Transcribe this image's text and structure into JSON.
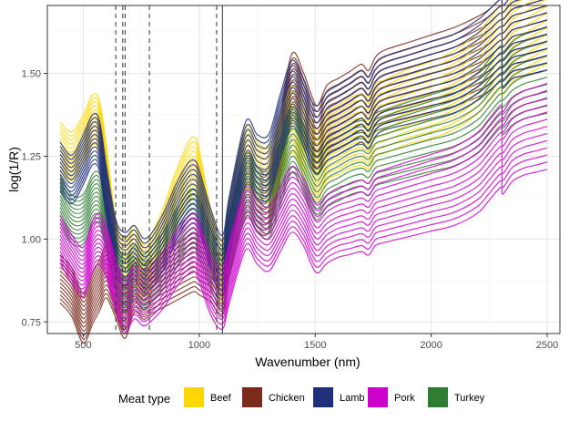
{
  "chart_data": {
    "type": "line",
    "title": "",
    "xlabel": "Wavenumber (nm)",
    "ylabel": "log(1/R)",
    "xlim": [
      345,
      2555
    ],
    "ylim": [
      0.715,
      1.705
    ],
    "x_ticks": [
      500,
      1000,
      1500,
      2000,
      2500
    ],
    "x_tick_labels": [
      "500",
      "1000",
      "1500",
      "2000",
      "2500"
    ],
    "y_ticks": [
      0.75,
      1.0,
      1.25,
      1.5
    ],
    "y_tick_labels": [
      "0.75",
      "1.00",
      "1.25",
      "1.50"
    ],
    "grid": true,
    "legend": {
      "position": "bottom",
      "title": "Meat type",
      "entries": [
        {
          "name": "Beef",
          "color": "#FFD700"
        },
        {
          "name": "Chicken",
          "color": "#7B2A1E"
        },
        {
          "name": "Lamb",
          "color": "#1F2F7A"
        },
        {
          "name": "Pork",
          "color": "#CC00CC"
        },
        {
          "name": "Turkey",
          "color": "#2E7D32"
        }
      ]
    },
    "reference_lines": [
      {
        "x": 640,
        "style": "dashed"
      },
      {
        "x": 670,
        "style": "dashed"
      },
      {
        "x": 680,
        "style": "dashed"
      },
      {
        "x": 785,
        "style": "dashed"
      },
      {
        "x": 1075,
        "style": "dashed"
      },
      {
        "x": 1100,
        "style": "solid"
      }
    ],
    "x": [
      400,
      450,
      500,
      540,
      570,
      600,
      640,
      680,
      720,
      760,
      800,
      850,
      900,
      950,
      980,
      1000,
      1050,
      1100,
      1130,
      1200,
      1250,
      1300,
      1350,
      1400,
      1450,
      1480,
      1510,
      1550,
      1600,
      1650,
      1700,
      1730,
      1760,
      1800,
      1900,
      2000,
      2100,
      2200,
      2250,
      2300,
      2310,
      2350,
      2400,
      2450,
      2500
    ],
    "series": [
      {
        "name": "Beef",
        "color": "#FFD700",
        "values": [
          1.28,
          1.25,
          1.3,
          1.36,
          1.34,
          1.2,
          0.98,
          0.92,
          0.96,
          0.9,
          0.94,
          1.02,
          1.12,
          1.2,
          1.22,
          1.18,
          1.0,
          0.9,
          1.02,
          1.24,
          1.2,
          1.18,
          1.28,
          1.36,
          1.3,
          1.26,
          1.22,
          1.28,
          1.3,
          1.32,
          1.33,
          1.32,
          1.36,
          1.37,
          1.4,
          1.42,
          1.45,
          1.5,
          1.54,
          1.58,
          1.56,
          1.6,
          1.62,
          1.64,
          1.66
        ]
      },
      {
        "name": "Chicken",
        "color": "#7B2A1E",
        "values": [
          0.88,
          0.84,
          0.76,
          0.82,
          0.86,
          0.9,
          0.84,
          0.78,
          0.86,
          0.84,
          0.86,
          0.88,
          0.9,
          0.92,
          0.93,
          0.92,
          0.9,
          0.86,
          0.98,
          1.16,
          1.12,
          1.12,
          1.28,
          1.46,
          1.4,
          1.34,
          1.3,
          1.36,
          1.38,
          1.4,
          1.42,
          1.4,
          1.44,
          1.46,
          1.48,
          1.5,
          1.52,
          1.55,
          1.57,
          1.6,
          1.58,
          1.61,
          1.62,
          1.63,
          1.64
        ]
      },
      {
        "name": "Lamb",
        "color": "#1F2F7A",
        "values": [
          1.22,
          1.18,
          1.24,
          1.3,
          1.28,
          1.14,
          0.98,
          0.94,
          0.96,
          0.92,
          0.94,
          1.0,
          1.08,
          1.14,
          1.15,
          1.12,
          1.0,
          0.92,
          1.04,
          1.26,
          1.22,
          1.22,
          1.34,
          1.44,
          1.38,
          1.32,
          1.3,
          1.34,
          1.36,
          1.38,
          1.4,
          1.38,
          1.42,
          1.44,
          1.46,
          1.48,
          1.5,
          1.54,
          1.57,
          1.6,
          1.58,
          1.61,
          1.62,
          1.63,
          1.64
        ]
      },
      {
        "name": "Pork",
        "color": "#CC00CC",
        "values": [
          1.0,
          0.94,
          0.9,
          0.98,
          1.0,
          0.96,
          0.86,
          0.8,
          0.84,
          0.82,
          0.84,
          0.88,
          0.94,
          0.98,
          0.99,
          0.96,
          0.86,
          0.82,
          0.9,
          1.06,
          1.02,
          1.0,
          1.06,
          1.12,
          1.08,
          1.03,
          1.0,
          1.03,
          1.05,
          1.06,
          1.07,
          1.06,
          1.09,
          1.1,
          1.12,
          1.14,
          1.16,
          1.2,
          1.24,
          1.28,
          1.26,
          1.3,
          1.32,
          1.33,
          1.34
        ]
      },
      {
        "name": "Turkey",
        "color": "#2E7D32",
        "values": [
          1.12,
          1.06,
          1.06,
          1.12,
          1.12,
          1.04,
          0.92,
          0.86,
          0.9,
          0.87,
          0.9,
          0.94,
          1.0,
          1.05,
          1.06,
          1.03,
          0.94,
          0.88,
          0.98,
          1.16,
          1.12,
          1.1,
          1.2,
          1.3,
          1.24,
          1.19,
          1.16,
          1.2,
          1.22,
          1.24,
          1.25,
          1.24,
          1.27,
          1.28,
          1.3,
          1.32,
          1.34,
          1.38,
          1.42,
          1.46,
          1.44,
          1.47,
          1.49,
          1.5,
          1.51
        ]
      }
    ]
  }
}
